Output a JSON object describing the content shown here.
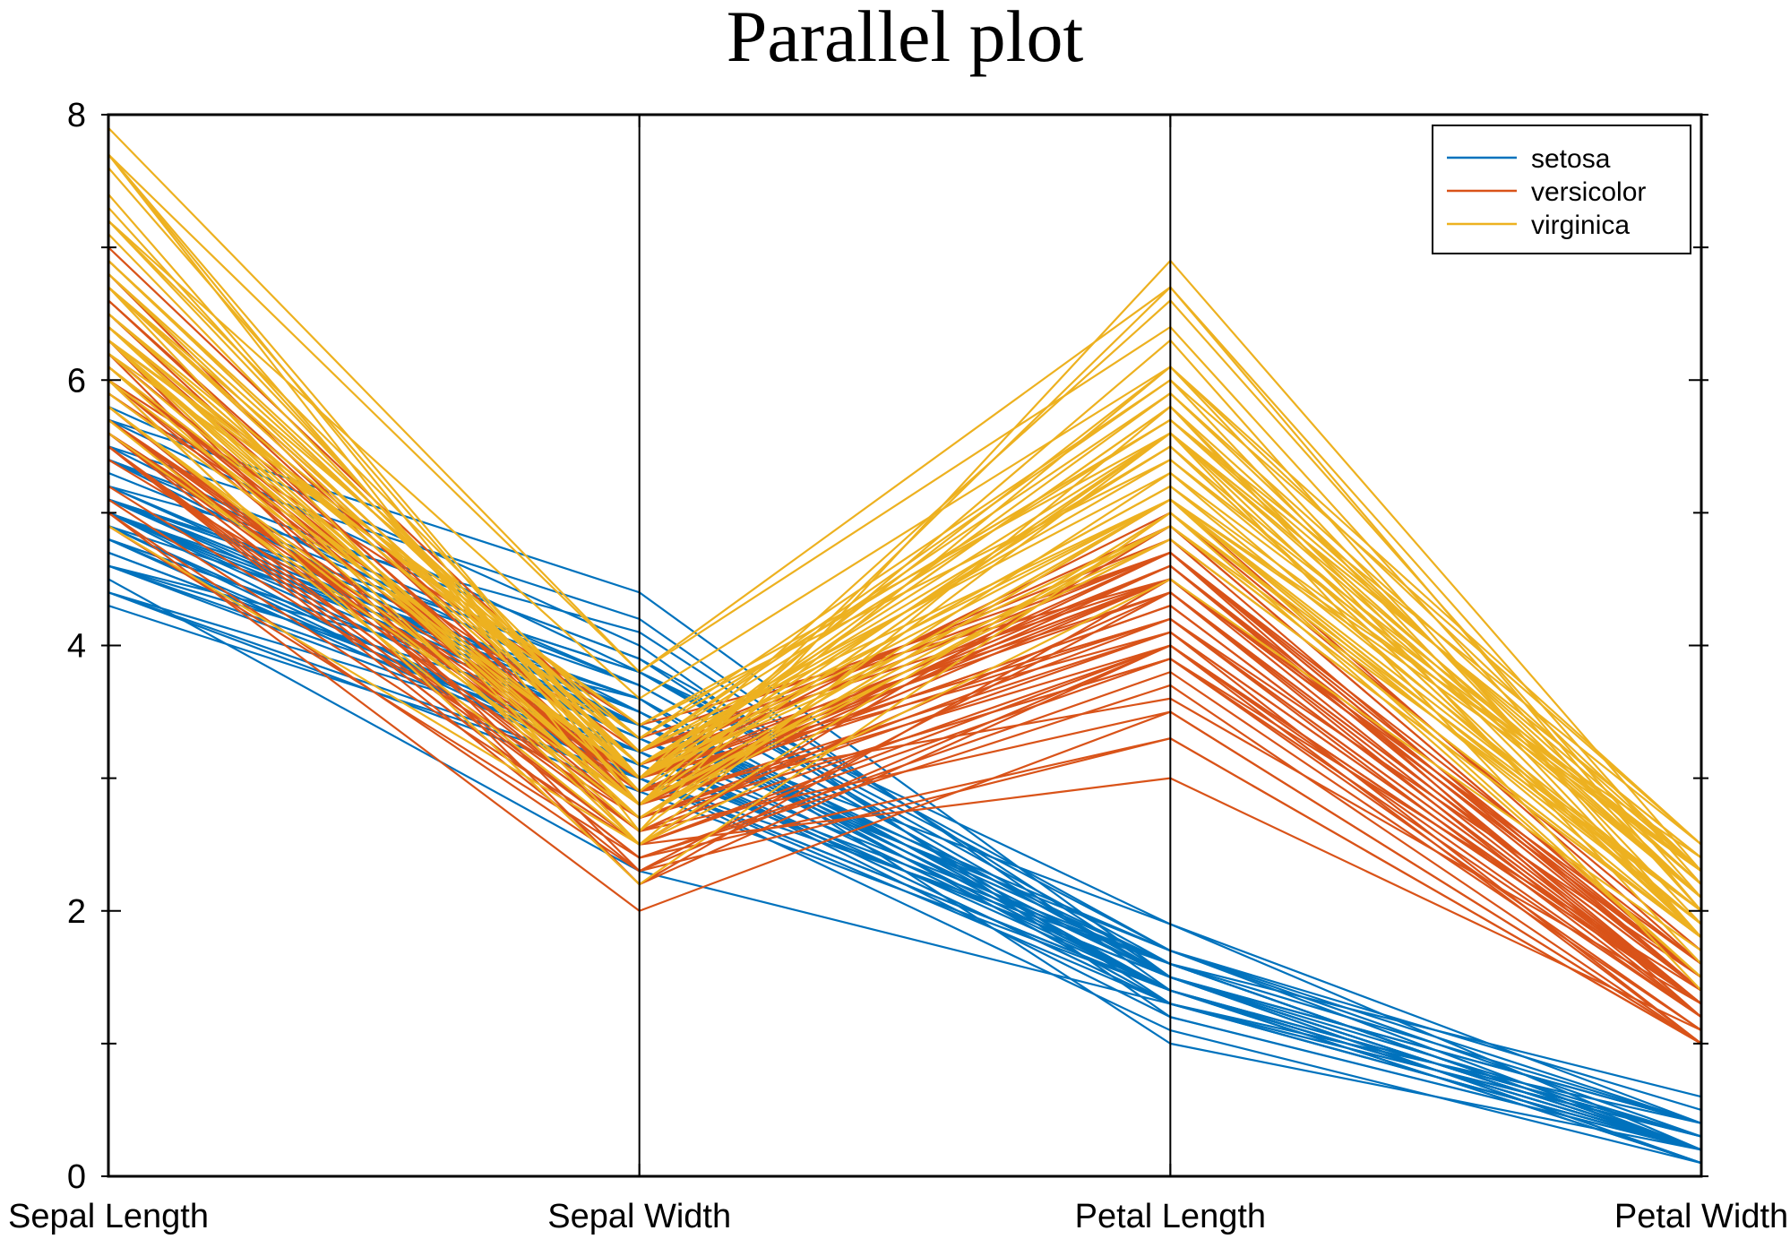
{
  "chart_data": {
    "type": "line",
    "title": "Parallel plot",
    "categories": [
      "Sepal Length",
      "Sepal Width",
      "Petal Length",
      "Petal Width"
    ],
    "ylim": [
      0,
      8
    ],
    "yticks": [
      0,
      2,
      4,
      6,
      8
    ],
    "grid": false,
    "legend": {
      "position": "top-right",
      "entries": [
        "setosa",
        "versicolor",
        "virginica"
      ]
    },
    "colors": {
      "setosa": "#0072BD",
      "versicolor": "#D95319",
      "virginica": "#EDB120"
    },
    "series": [
      {
        "name": "setosa",
        "rows": [
          [
            5.1,
            3.5,
            1.4,
            0.2
          ],
          [
            4.9,
            3.0,
            1.4,
            0.2
          ],
          [
            4.7,
            3.2,
            1.3,
            0.2
          ],
          [
            4.6,
            3.1,
            1.5,
            0.2
          ],
          [
            5.0,
            3.6,
            1.4,
            0.2
          ],
          [
            5.4,
            3.9,
            1.7,
            0.4
          ],
          [
            4.6,
            3.4,
            1.4,
            0.3
          ],
          [
            5.0,
            3.4,
            1.5,
            0.2
          ],
          [
            4.4,
            2.9,
            1.4,
            0.2
          ],
          [
            4.9,
            3.1,
            1.5,
            0.1
          ],
          [
            5.4,
            3.7,
            1.5,
            0.2
          ],
          [
            4.8,
            3.4,
            1.6,
            0.2
          ],
          [
            4.8,
            3.0,
            1.4,
            0.1
          ],
          [
            4.3,
            3.0,
            1.1,
            0.1
          ],
          [
            5.8,
            4.0,
            1.2,
            0.2
          ],
          [
            5.7,
            4.4,
            1.5,
            0.4
          ],
          [
            5.4,
            3.9,
            1.3,
            0.4
          ],
          [
            5.1,
            3.5,
            1.4,
            0.3
          ],
          [
            5.7,
            3.8,
            1.7,
            0.3
          ],
          [
            5.1,
            3.8,
            1.5,
            0.3
          ],
          [
            5.4,
            3.4,
            1.7,
            0.2
          ],
          [
            5.1,
            3.7,
            1.5,
            0.4
          ],
          [
            4.6,
            3.6,
            1.0,
            0.2
          ],
          [
            5.1,
            3.3,
            1.7,
            0.5
          ],
          [
            4.8,
            3.4,
            1.9,
            0.2
          ],
          [
            5.0,
            3.0,
            1.6,
            0.2
          ],
          [
            5.0,
            3.4,
            1.6,
            0.4
          ],
          [
            5.2,
            3.5,
            1.5,
            0.2
          ],
          [
            5.2,
            3.4,
            1.4,
            0.2
          ],
          [
            4.7,
            3.2,
            1.6,
            0.2
          ],
          [
            4.8,
            3.1,
            1.6,
            0.2
          ],
          [
            5.4,
            3.4,
            1.5,
            0.4
          ],
          [
            5.2,
            4.1,
            1.5,
            0.1
          ],
          [
            5.5,
            4.2,
            1.4,
            0.2
          ],
          [
            4.9,
            3.1,
            1.5,
            0.2
          ],
          [
            5.0,
            3.2,
            1.2,
            0.2
          ],
          [
            5.5,
            3.5,
            1.3,
            0.2
          ],
          [
            4.9,
            3.6,
            1.4,
            0.1
          ],
          [
            4.4,
            3.0,
            1.3,
            0.2
          ],
          [
            5.1,
            3.4,
            1.5,
            0.2
          ],
          [
            5.0,
            3.5,
            1.3,
            0.3
          ],
          [
            4.5,
            2.3,
            1.3,
            0.3
          ],
          [
            4.4,
            3.2,
            1.3,
            0.2
          ],
          [
            5.0,
            3.5,
            1.6,
            0.6
          ],
          [
            5.1,
            3.8,
            1.9,
            0.4
          ],
          [
            4.8,
            3.0,
            1.4,
            0.3
          ],
          [
            5.1,
            3.8,
            1.6,
            0.2
          ],
          [
            4.6,
            3.2,
            1.4,
            0.2
          ],
          [
            5.3,
            3.7,
            1.5,
            0.2
          ],
          [
            5.0,
            3.3,
            1.4,
            0.2
          ]
        ]
      },
      {
        "name": "versicolor",
        "rows": [
          [
            7.0,
            3.2,
            4.7,
            1.4
          ],
          [
            6.4,
            3.2,
            4.5,
            1.5
          ],
          [
            6.9,
            3.1,
            4.9,
            1.5
          ],
          [
            5.5,
            2.3,
            4.0,
            1.3
          ],
          [
            6.5,
            2.8,
            4.6,
            1.5
          ],
          [
            5.7,
            2.8,
            4.5,
            1.3
          ],
          [
            6.3,
            3.3,
            4.7,
            1.6
          ],
          [
            4.9,
            2.4,
            3.3,
            1.0
          ],
          [
            6.6,
            2.9,
            4.6,
            1.3
          ],
          [
            5.2,
            2.7,
            3.9,
            1.4
          ],
          [
            5.0,
            2.0,
            3.5,
            1.0
          ],
          [
            5.9,
            3.0,
            4.2,
            1.5
          ],
          [
            6.0,
            2.2,
            4.0,
            1.0
          ],
          [
            6.1,
            2.9,
            4.7,
            1.4
          ],
          [
            5.6,
            2.9,
            3.6,
            1.3
          ],
          [
            6.7,
            3.1,
            4.4,
            1.4
          ],
          [
            5.6,
            3.0,
            4.5,
            1.5
          ],
          [
            5.8,
            2.7,
            4.1,
            1.0
          ],
          [
            6.2,
            2.2,
            4.5,
            1.5
          ],
          [
            5.6,
            2.5,
            3.9,
            1.1
          ],
          [
            5.9,
            3.2,
            4.8,
            1.8
          ],
          [
            6.1,
            2.8,
            4.0,
            1.3
          ],
          [
            6.3,
            2.5,
            4.9,
            1.5
          ],
          [
            6.1,
            2.8,
            4.7,
            1.2
          ],
          [
            6.4,
            2.9,
            4.3,
            1.3
          ],
          [
            6.6,
            3.0,
            4.4,
            1.4
          ],
          [
            6.8,
            2.8,
            4.8,
            1.4
          ],
          [
            6.7,
            3.0,
            5.0,
            1.7
          ],
          [
            6.0,
            2.9,
            4.5,
            1.5
          ],
          [
            5.7,
            2.6,
            3.5,
            1.0
          ],
          [
            5.5,
            2.4,
            3.8,
            1.1
          ],
          [
            5.5,
            2.4,
            3.7,
            1.0
          ],
          [
            5.8,
            2.7,
            3.9,
            1.2
          ],
          [
            6.0,
            2.7,
            5.1,
            1.6
          ],
          [
            5.4,
            3.0,
            4.5,
            1.5
          ],
          [
            6.0,
            3.4,
            4.5,
            1.6
          ],
          [
            6.7,
            3.1,
            4.7,
            1.5
          ],
          [
            6.3,
            2.3,
            4.4,
            1.3
          ],
          [
            5.6,
            3.0,
            4.1,
            1.3
          ],
          [
            5.5,
            2.5,
            4.0,
            1.3
          ],
          [
            5.5,
            2.6,
            4.4,
            1.2
          ],
          [
            6.1,
            3.0,
            4.6,
            1.4
          ],
          [
            5.8,
            2.6,
            4.0,
            1.2
          ],
          [
            5.0,
            2.3,
            3.3,
            1.0
          ],
          [
            5.6,
            2.7,
            4.2,
            1.3
          ],
          [
            5.7,
            3.0,
            4.2,
            1.2
          ],
          [
            5.7,
            2.9,
            4.2,
            1.3
          ],
          [
            6.2,
            2.9,
            4.3,
            1.3
          ],
          [
            5.1,
            2.5,
            3.0,
            1.1
          ],
          [
            5.7,
            2.8,
            4.1,
            1.3
          ]
        ]
      },
      {
        "name": "virginica",
        "rows": [
          [
            6.3,
            3.3,
            6.0,
            2.5
          ],
          [
            5.8,
            2.7,
            5.1,
            1.9
          ],
          [
            7.1,
            3.0,
            5.9,
            2.1
          ],
          [
            6.3,
            2.9,
            5.6,
            1.8
          ],
          [
            6.5,
            3.0,
            5.8,
            2.2
          ],
          [
            7.6,
            3.0,
            6.6,
            2.1
          ],
          [
            4.9,
            2.5,
            4.5,
            1.7
          ],
          [
            7.3,
            2.9,
            6.3,
            1.8
          ],
          [
            6.7,
            2.5,
            5.8,
            1.8
          ],
          [
            7.2,
            3.6,
            6.1,
            2.5
          ],
          [
            6.5,
            3.2,
            5.1,
            2.0
          ],
          [
            6.4,
            2.7,
            5.3,
            1.9
          ],
          [
            6.8,
            3.0,
            5.5,
            2.1
          ],
          [
            5.7,
            2.5,
            5.0,
            2.0
          ],
          [
            5.8,
            2.8,
            5.1,
            2.4
          ],
          [
            6.4,
            3.2,
            5.3,
            2.3
          ],
          [
            6.5,
            3.0,
            5.5,
            1.8
          ],
          [
            7.7,
            3.8,
            6.7,
            2.2
          ],
          [
            7.7,
            2.6,
            6.9,
            2.3
          ],
          [
            6.0,
            2.2,
            5.0,
            1.5
          ],
          [
            6.9,
            3.2,
            5.7,
            2.3
          ],
          [
            5.6,
            2.8,
            4.9,
            2.0
          ],
          [
            7.7,
            2.8,
            6.7,
            2.0
          ],
          [
            6.3,
            2.7,
            4.9,
            1.8
          ],
          [
            6.7,
            3.3,
            5.7,
            2.1
          ],
          [
            7.2,
            3.2,
            6.0,
            1.8
          ],
          [
            6.2,
            2.8,
            4.8,
            1.8
          ],
          [
            6.1,
            3.0,
            4.9,
            1.8
          ],
          [
            6.4,
            2.8,
            5.6,
            2.1
          ],
          [
            7.2,
            3.0,
            5.8,
            1.6
          ],
          [
            7.4,
            2.8,
            6.1,
            1.9
          ],
          [
            7.9,
            3.8,
            6.4,
            2.0
          ],
          [
            6.4,
            2.8,
            5.6,
            2.2
          ],
          [
            6.3,
            2.8,
            5.1,
            1.5
          ],
          [
            6.1,
            2.6,
            5.6,
            1.4
          ],
          [
            7.7,
            3.0,
            6.1,
            2.3
          ],
          [
            6.3,
            3.4,
            5.6,
            2.4
          ],
          [
            6.4,
            3.1,
            5.5,
            1.8
          ],
          [
            6.0,
            3.0,
            4.8,
            1.8
          ],
          [
            6.9,
            3.1,
            5.4,
            2.1
          ],
          [
            6.7,
            3.1,
            5.6,
            2.4
          ],
          [
            6.9,
            3.1,
            5.1,
            2.3
          ],
          [
            5.8,
            2.7,
            5.1,
            1.9
          ],
          [
            6.8,
            3.2,
            5.9,
            2.3
          ],
          [
            6.7,
            3.3,
            5.7,
            2.5
          ],
          [
            6.7,
            3.0,
            5.2,
            2.3
          ],
          [
            6.3,
            2.5,
            5.0,
            1.9
          ],
          [
            6.5,
            3.0,
            5.2,
            2.0
          ],
          [
            6.2,
            3.4,
            5.4,
            2.3
          ],
          [
            5.9,
            3.0,
            5.1,
            1.8
          ]
        ]
      }
    ]
  }
}
